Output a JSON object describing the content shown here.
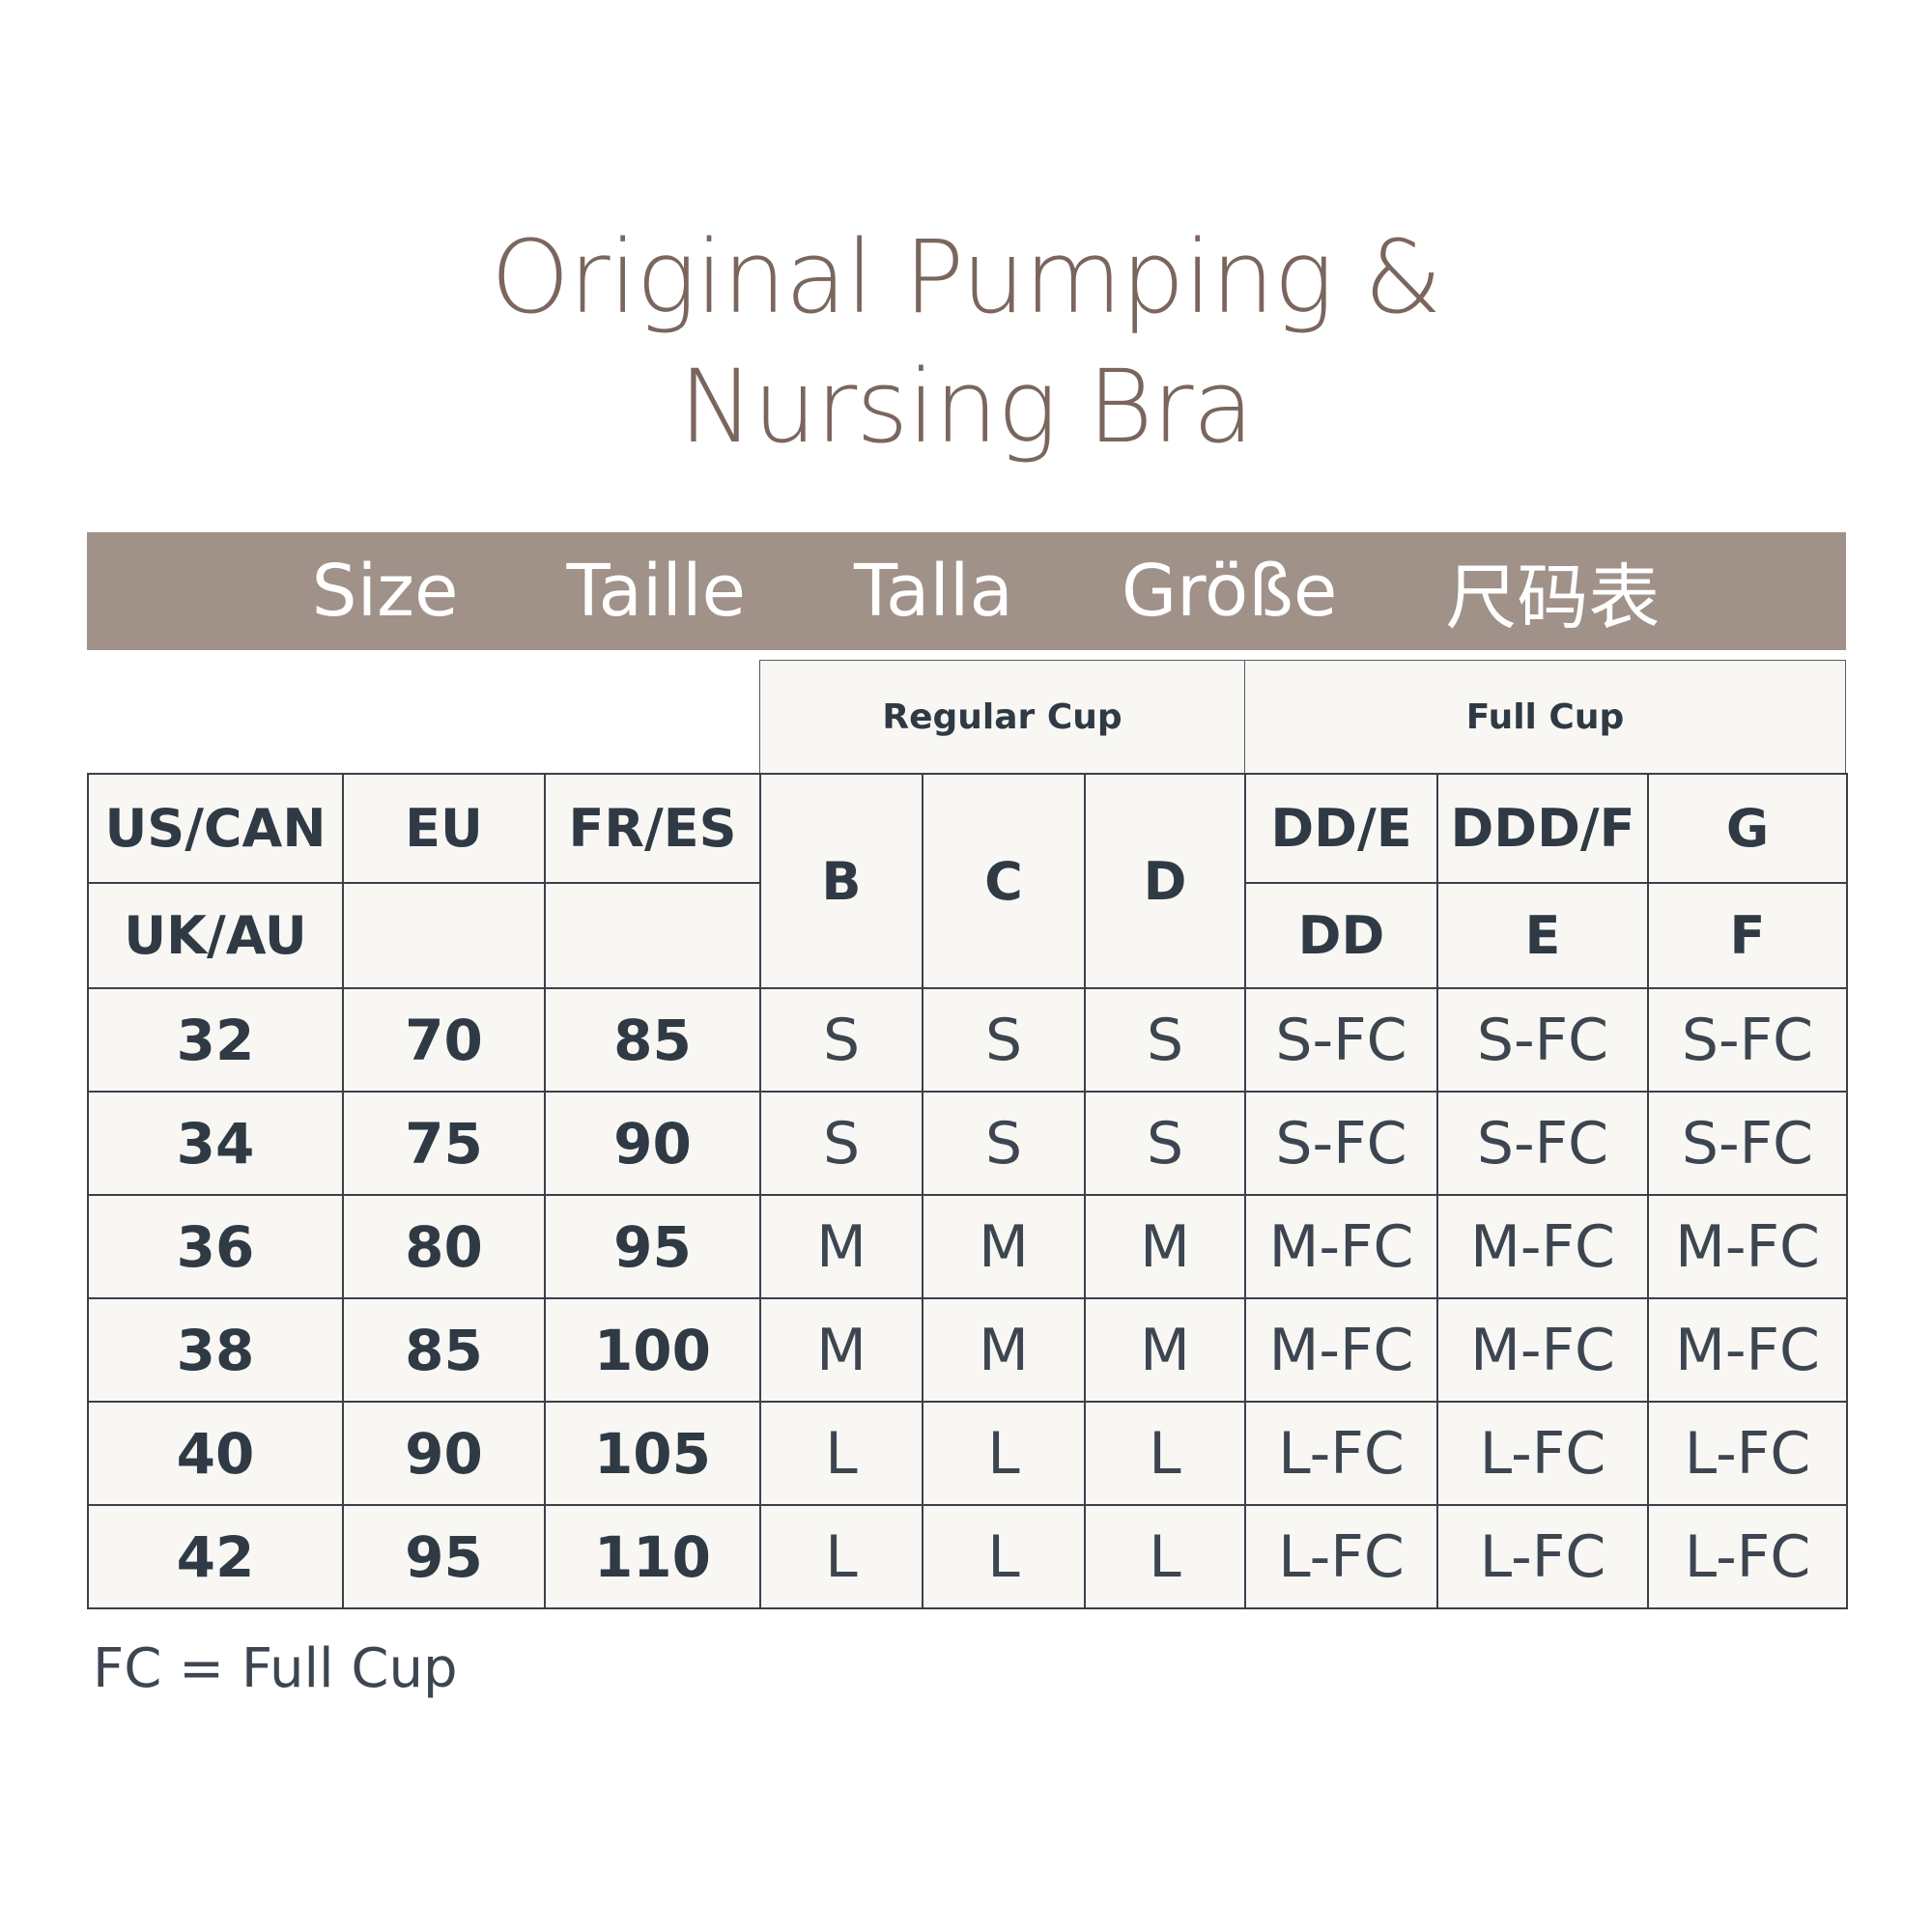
{
  "title": {
    "line1": "Original Pumping &",
    "line2": "Nursing Bra"
  },
  "band": [
    "Size",
    "Taille",
    "Talla",
    "Größe",
    "尺码表"
  ],
  "groups": {
    "regular": "Regular Cup",
    "full": "Full Cup"
  },
  "header": {
    "us_can": "US/CAN",
    "uk_au": "UK/AU",
    "eu": "EU",
    "fr_es": "FR/ES",
    "b": "B",
    "c": "C",
    "d": "D",
    "dd_e": "DD/E",
    "ddd_f": "DDD/F",
    "g": "G",
    "dd": "DD",
    "e": "E",
    "f": "F"
  },
  "rows": [
    [
      "32",
      "70",
      "85",
      "S",
      "S",
      "S",
      "S-FC",
      "S-FC",
      "S-FC"
    ],
    [
      "34",
      "75",
      "90",
      "S",
      "S",
      "S",
      "S-FC",
      "S-FC",
      "S-FC"
    ],
    [
      "36",
      "80",
      "95",
      "M",
      "M",
      "M",
      "M-FC",
      "M-FC",
      "M-FC"
    ],
    [
      "38",
      "85",
      "100",
      "M",
      "M",
      "M",
      "M-FC",
      "M-FC",
      "M-FC"
    ],
    [
      "40",
      "90",
      "105",
      "L",
      "L",
      "L",
      "L-FC",
      "L-FC",
      "L-FC"
    ],
    [
      "42",
      "95",
      "110",
      "L",
      "L",
      "L",
      "L-FC",
      "L-FC",
      "L-FC"
    ]
  ],
  "footnote": "FC = Full Cup",
  "colors": {
    "title": "#7a665d",
    "band": "#a09189",
    "cell_bg": "#f8f7f4",
    "text": "#2f3a44"
  }
}
